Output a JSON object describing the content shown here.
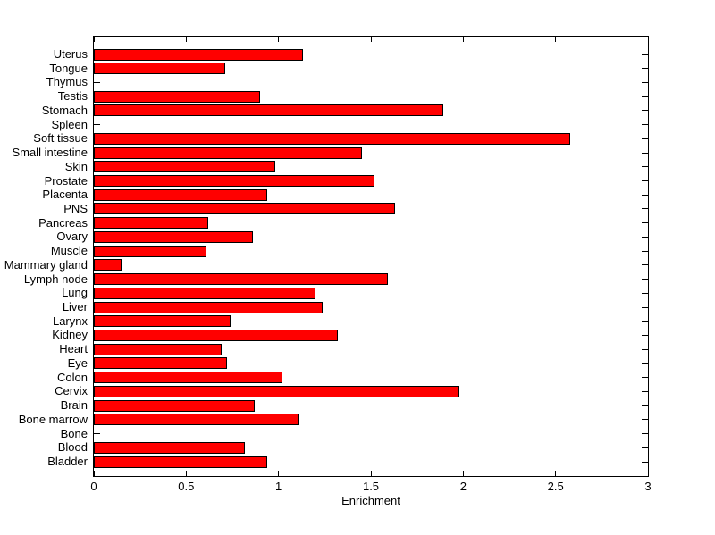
{
  "figure": {
    "background": "#ffffff"
  },
  "chart_data": {
    "type": "bar",
    "orientation": "horizontal",
    "title": "",
    "xlabel": "Enrichment",
    "ylabel": "",
    "xlim": [
      0,
      3
    ],
    "xticks": [
      0,
      0.5,
      1,
      1.5,
      2,
      2.5,
      3
    ],
    "xtick_labels": [
      "0",
      "0.5",
      "1",
      "1.5",
      "2",
      "2.5",
      "3"
    ],
    "grid": false,
    "legend": null,
    "bar_color": "#ff0000",
    "bar_edge_color": "#000000",
    "axis_color": "#000000",
    "categories_order": "top-to-bottom",
    "categories": [
      "Uterus",
      "Tongue",
      "Thymus",
      "Testis",
      "Stomach",
      "Spleen",
      "Soft tissue",
      "Small intestine",
      "Skin",
      "Prostate",
      "Placenta",
      "PNS",
      "Pancreas",
      "Ovary",
      "Muscle",
      "Mammary gland",
      "Lymph node",
      "Lung",
      "Liver",
      "Larynx",
      "Kidney",
      "Heart",
      "Eye",
      "Colon",
      "Cervix",
      "Brain",
      "Bone marrow",
      "Bone",
      "Blood",
      "Bladder"
    ],
    "values": [
      1.13,
      0.71,
      0,
      0.9,
      1.89,
      0,
      2.58,
      1.45,
      0.98,
      1.52,
      0.94,
      1.63,
      0.62,
      0.86,
      0.61,
      0.15,
      1.59,
      1.2,
      1.24,
      0.74,
      1.32,
      0.69,
      0.72,
      1.02,
      1.98,
      0.87,
      1.11,
      0,
      0.82,
      0.94
    ]
  }
}
